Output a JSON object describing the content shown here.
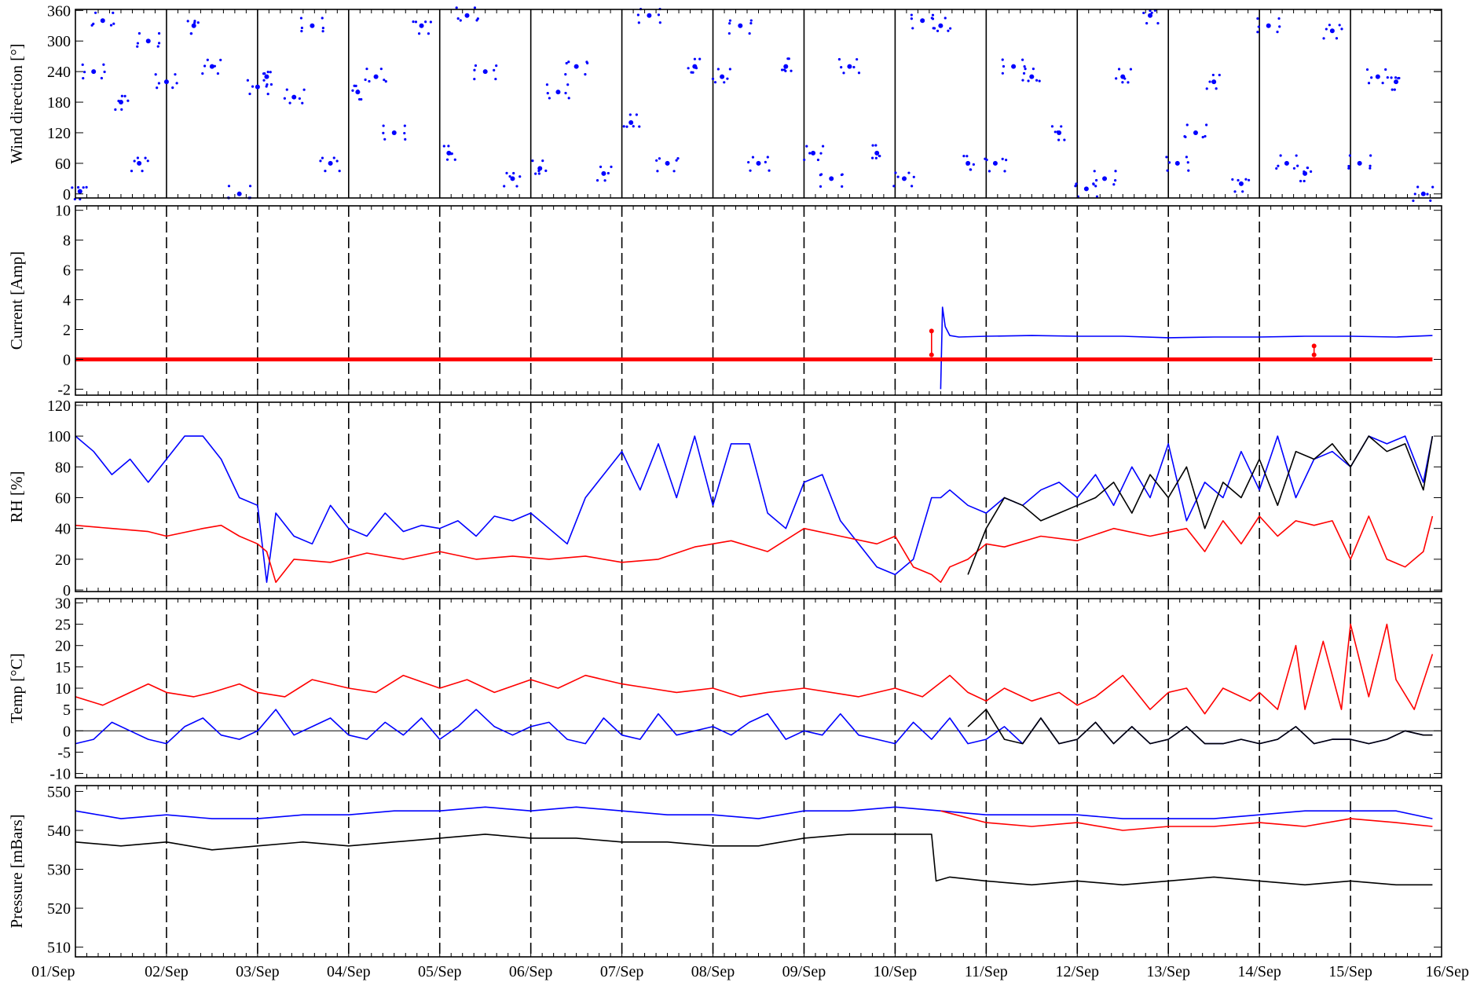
{
  "chart_data": [
    {
      "type": "scatter",
      "ylabel": "Wind direction [°]",
      "ylim": [
        -8,
        362
      ],
      "yticks": [
        0,
        60,
        120,
        180,
        240,
        300,
        360
      ],
      "day_lines": "solid",
      "series": [
        {
          "color": "#0000ff",
          "x": [
            0.05,
            0.2,
            0.3,
            0.5,
            0.7,
            0.8,
            1.0,
            1.3,
            1.5,
            1.8,
            2.0,
            2.1,
            2.4,
            2.6,
            2.8,
            3.1,
            3.3,
            3.5,
            3.8,
            4.1,
            4.3,
            4.5,
            4.8,
            5.1,
            5.3,
            5.5,
            5.8,
            6.1,
            6.3,
            6.5,
            6.8,
            7.1,
            7.3,
            7.5,
            7.8,
            8.1,
            8.3,
            8.5,
            8.8,
            9.1,
            9.3,
            9.5,
            9.8,
            10.1,
            10.3,
            10.5,
            10.8,
            11.1,
            11.3,
            11.5,
            11.8,
            12.1,
            12.3,
            12.5,
            12.8,
            13.1,
            13.3,
            13.5,
            13.8,
            14.1,
            14.3,
            14.5,
            14.8
          ],
          "y": [
            5,
            240,
            340,
            180,
            60,
            300,
            220,
            330,
            250,
            0,
            210,
            230,
            190,
            330,
            60,
            200,
            230,
            120,
            330,
            80,
            350,
            240,
            30,
            50,
            200,
            250,
            40,
            140,
            350,
            60,
            250,
            230,
            330,
            60,
            250,
            80,
            30,
            250,
            80,
            30,
            340,
            330,
            60,
            60,
            250,
            230,
            120,
            10,
            30,
            230,
            350,
            60,
            120,
            220,
            20,
            330,
            60,
            40,
            320,
            60,
            230,
            220,
            0
          ]
        }
      ]
    },
    {
      "type": "line",
      "ylabel": "Current [Amp]",
      "ylim": [
        -2.4,
        10.3
      ],
      "yticks": [
        -2,
        0,
        2,
        4,
        6,
        8,
        10
      ],
      "day_lines": "dashed",
      "series": [
        {
          "color": "#0000ff",
          "x": [
            9.5,
            9.52,
            9.55,
            9.6,
            9.7,
            10.0,
            10.5,
            11.0,
            11.5,
            12.0,
            12.5,
            13.0,
            13.5,
            14.0,
            14.5,
            14.9
          ],
          "y": [
            -2.0,
            3.5,
            2.2,
            1.6,
            1.5,
            1.55,
            1.6,
            1.55,
            1.55,
            1.45,
            1.5,
            1.5,
            1.55,
            1.55,
            1.5,
            1.6
          ]
        },
        {
          "color": "#ff0000",
          "x": [
            0,
            14.9
          ],
          "y": [
            0,
            0
          ]
        },
        {
          "color": "#ff0000",
          "x": [
            9.4,
            9.4
          ],
          "y": [
            0.3,
            1.9
          ]
        },
        {
          "color": "#ff0000",
          "x": [
            13.6,
            13.6
          ],
          "y": [
            0.3,
            0.9
          ]
        }
      ]
    },
    {
      "type": "line",
      "ylabel": "RH [%]",
      "ylim": [
        -1,
        122
      ],
      "yticks": [
        0,
        20,
        40,
        60,
        80,
        100,
        120
      ],
      "day_lines": "dashed",
      "series": [
        {
          "color": "#0000ff",
          "x": [
            0,
            0.2,
            0.4,
            0.6,
            0.8,
            1.0,
            1.2,
            1.4,
            1.6,
            1.8,
            2.0,
            2.1,
            2.2,
            2.4,
            2.6,
            2.8,
            3.0,
            3.2,
            3.4,
            3.6,
            3.8,
            4.0,
            4.2,
            4.4,
            4.6,
            4.8,
            5.0,
            5.2,
            5.4,
            5.6,
            5.8,
            6.0,
            6.2,
            6.4,
            6.6,
            6.8,
            7.0,
            7.2,
            7.4,
            7.6,
            7.8,
            8.0,
            8.2,
            8.4,
            8.6,
            8.8,
            9.0,
            9.2,
            9.4,
            9.5,
            9.6,
            9.8,
            10.0,
            10.2,
            10.4,
            10.6,
            10.8,
            11.0,
            11.2,
            11.4,
            11.6,
            11.8,
            12.0,
            12.2,
            12.4,
            12.6,
            12.8,
            13.0,
            13.2,
            13.4,
            13.6,
            13.8,
            14.0,
            14.2,
            14.4,
            14.6,
            14.8,
            14.9
          ],
          "y": [
            100,
            90,
            75,
            85,
            70,
            85,
            100,
            100,
            85,
            60,
            55,
            5,
            50,
            35,
            30,
            55,
            40,
            35,
            50,
            38,
            42,
            40,
            45,
            35,
            48,
            45,
            50,
            40,
            30,
            60,
            75,
            90,
            65,
            95,
            60,
            100,
            55,
            95,
            95,
            50,
            40,
            70,
            75,
            45,
            30,
            15,
            10,
            20,
            60,
            60,
            65,
            55,
            50,
            60,
            55,
            65,
            70,
            60,
            75,
            55,
            80,
            60,
            95,
            45,
            70,
            60,
            90,
            65,
            100,
            60,
            85,
            90,
            80,
            100,
            95,
            100,
            70,
            100
          ]
        },
        {
          "color": "#ff0000",
          "x": [
            0,
            0.4,
            0.8,
            1.0,
            1.4,
            1.6,
            1.8,
            2.0,
            2.1,
            2.2,
            2.4,
            2.8,
            3.2,
            3.6,
            4.0,
            4.4,
            4.8,
            5.2,
            5.6,
            6.0,
            6.4,
            6.8,
            7.2,
            7.6,
            8.0,
            8.4,
            8.8,
            9.0,
            9.2,
            9.4,
            9.5,
            9.6,
            9.8,
            10.0,
            10.2,
            10.6,
            11.0,
            11.4,
            11.8,
            12.2,
            12.4,
            12.6,
            12.8,
            13.0,
            13.2,
            13.4,
            13.6,
            13.8,
            14.0,
            14.2,
            14.4,
            14.6,
            14.8,
            14.9
          ],
          "y": [
            42,
            40,
            38,
            35,
            40,
            42,
            35,
            30,
            25,
            5,
            20,
            18,
            24,
            20,
            25,
            20,
            22,
            20,
            22,
            18,
            20,
            28,
            32,
            25,
            40,
            35,
            30,
            35,
            15,
            10,
            5,
            15,
            20,
            30,
            28,
            35,
            32,
            40,
            35,
            40,
            25,
            45,
            30,
            48,
            35,
            45,
            42,
            45,
            20,
            48,
            20,
            15,
            25,
            48
          ]
        },
        {
          "color": "#000000",
          "x": [
            9.8,
            10.0,
            10.2,
            10.4,
            10.6,
            10.8,
            11.0,
            11.2,
            11.4,
            11.6,
            11.8,
            12.0,
            12.2,
            12.4,
            12.6,
            12.8,
            13.0,
            13.2,
            13.4,
            13.6,
            13.8,
            14.0,
            14.2,
            14.4,
            14.6,
            14.8,
            14.9
          ],
          "y": [
            10,
            40,
            60,
            55,
            45,
            50,
            55,
            60,
            70,
            50,
            75,
            60,
            80,
            40,
            70,
            60,
            85,
            55,
            90,
            85,
            95,
            80,
            100,
            90,
            95,
            65,
            100
          ]
        }
      ]
    },
    {
      "type": "line",
      "ylabel": "Temp [°C]",
      "ylim": [
        -11,
        31
      ],
      "yticks": [
        -10,
        -5,
        0,
        5,
        10,
        15,
        20,
        25,
        30
      ],
      "day_lines": "dashed",
      "zero_line": true,
      "series": [
        {
          "color": "#ff0000",
          "x": [
            0,
            0.3,
            0.5,
            0.8,
            1.0,
            1.3,
            1.5,
            1.8,
            2.0,
            2.3,
            2.6,
            3.0,
            3.3,
            3.6,
            4.0,
            4.3,
            4.6,
            5.0,
            5.3,
            5.6,
            6.0,
            6.3,
            6.6,
            7.0,
            7.3,
            7.6,
            8.0,
            8.3,
            8.6,
            9.0,
            9.3,
            9.6,
            9.8,
            10.0,
            10.2,
            10.5,
            10.8,
            11.0,
            11.2,
            11.5,
            11.8,
            12.0,
            12.2,
            12.4,
            12.6,
            12.9,
            13.0,
            13.2,
            13.4,
            13.5,
            13.7,
            13.9,
            14.0,
            14.2,
            14.4,
            14.5,
            14.7,
            14.9
          ],
          "y": [
            8,
            6,
            8,
            11,
            9,
            8,
            9,
            11,
            9,
            8,
            12,
            10,
            9,
            13,
            10,
            12,
            9,
            12,
            10,
            13,
            11,
            10,
            9,
            10,
            8,
            9,
            10,
            9,
            8,
            10,
            8,
            13,
            9,
            7,
            10,
            7,
            9,
            6,
            8,
            13,
            5,
            9,
            10,
            4,
            10,
            7,
            9,
            5,
            20,
            5,
            21,
            5,
            25,
            8,
            25,
            12,
            5,
            18
          ]
        },
        {
          "color": "#0000ff",
          "x": [
            0,
            0.2,
            0.4,
            0.6,
            0.8,
            1.0,
            1.2,
            1.4,
            1.6,
            1.8,
            2.0,
            2.2,
            2.4,
            2.6,
            2.8,
            3.0,
            3.2,
            3.4,
            3.6,
            3.8,
            4.0,
            4.2,
            4.4,
            4.6,
            4.8,
            5.0,
            5.2,
            5.4,
            5.6,
            5.8,
            6.0,
            6.2,
            6.4,
            6.6,
            6.8,
            7.0,
            7.2,
            7.4,
            7.6,
            7.8,
            8.0,
            8.2,
            8.4,
            8.6,
            8.8,
            9.0,
            9.2,
            9.4,
            9.6,
            9.8,
            10.0,
            10.2,
            10.4,
            10.6,
            10.8,
            11.0,
            11.2,
            11.4,
            11.6,
            11.8,
            12.0,
            12.2,
            12.4,
            12.6,
            12.8,
            13.0,
            13.2,
            13.4,
            13.6,
            13.8,
            14.0,
            14.2,
            14.4,
            14.6,
            14.8,
            14.9
          ],
          "y": [
            -3,
            -2,
            2,
            0,
            -2,
            -3,
            1,
            3,
            -1,
            -2,
            0,
            5,
            -1,
            1,
            3,
            -1,
            -2,
            2,
            -1,
            3,
            -2,
            1,
            5,
            1,
            -1,
            1,
            2,
            -2,
            -3,
            3,
            -1,
            -2,
            4,
            -1,
            0,
            1,
            -1,
            2,
            4,
            -2,
            0,
            -1,
            4,
            -1,
            -2,
            -3,
            2,
            -2,
            3,
            -3,
            -2,
            1,
            -3,
            3,
            -3,
            -2,
            2,
            -3,
            1,
            -3,
            -2,
            1,
            -3,
            -3,
            -2,
            -3,
            -2,
            1,
            -3,
            -2,
            -2,
            -3,
            -2,
            0,
            -1,
            -1
          ]
        },
        {
          "color": "#000000",
          "x": [
            9.8,
            10.0,
            10.2,
            10.4,
            10.6,
            10.8,
            11.0,
            11.2,
            11.4,
            11.6,
            11.8,
            12.0,
            12.2,
            12.4,
            12.6,
            12.8,
            13.0,
            13.2,
            13.4,
            13.6,
            13.8,
            14.0,
            14.2,
            14.4,
            14.6,
            14.8,
            14.9
          ],
          "y": [
            1,
            5,
            -2,
            -3,
            3,
            -3,
            -2,
            2,
            -3,
            1,
            -3,
            -2,
            1,
            -3,
            -3,
            -2,
            -3,
            -2,
            1,
            -3,
            -2,
            -2,
            -3,
            -2,
            0,
            -1,
            -1
          ]
        }
      ]
    },
    {
      "type": "line",
      "ylabel": "Pressure [mBars]",
      "ylim": [
        507.5,
        551.5
      ],
      "yticks": [
        510,
        520,
        530,
        540,
        550
      ],
      "day_lines": "dashed",
      "series": [
        {
          "color": "#0000ff",
          "x": [
            0,
            0.5,
            1.0,
            1.5,
            2.0,
            2.5,
            3.0,
            3.5,
            4.0,
            4.5,
            5.0,
            5.5,
            6.0,
            6.5,
            7.0,
            7.5,
            8.0,
            8.5,
            9.0,
            9.5,
            10.0,
            10.5,
            11.0,
            11.5,
            12.0,
            12.5,
            13.0,
            13.5,
            14.0,
            14.5,
            14.9
          ],
          "y": [
            545,
            543,
            544,
            543,
            543,
            544,
            544,
            545,
            545,
            546,
            545,
            546,
            545,
            544,
            544,
            543,
            545,
            545,
            546,
            545,
            544,
            544,
            544,
            543,
            543,
            543,
            544,
            545,
            545,
            545,
            543
          ]
        },
        {
          "color": "#000000",
          "x": [
            0,
            0.5,
            1.0,
            1.5,
            2.0,
            2.5,
            3.0,
            3.5,
            4.0,
            4.5,
            5.0,
            5.5,
            6.0,
            6.5,
            7.0,
            7.5,
            8.0,
            8.5,
            9.0,
            9.4,
            9.45,
            9.6,
            10.0,
            10.5,
            11.0,
            11.5,
            12.0,
            12.5,
            13.0,
            13.5,
            14.0,
            14.5,
            14.9
          ],
          "y": [
            537,
            536,
            537,
            535,
            536,
            537,
            536,
            537,
            538,
            539,
            538,
            538,
            537,
            537,
            536,
            536,
            538,
            539,
            539,
            539,
            527,
            528,
            527,
            526,
            527,
            526,
            527,
            528,
            527,
            526,
            527,
            526,
            526
          ]
        },
        {
          "color": "#ff0000",
          "x": [
            9.5,
            10.0,
            10.5,
            11.0,
            11.5,
            12.0,
            12.5,
            13.0,
            13.5,
            14.0,
            14.5,
            14.9
          ],
          "y": [
            545,
            542,
            541,
            542,
            540,
            541,
            541,
            542,
            541,
            543,
            542,
            541
          ]
        }
      ]
    }
  ],
  "xaxis": {
    "tick_labels": [
      "01/Sep",
      "02/Sep",
      "03/Sep",
      "04/Sep",
      "05/Sep",
      "06/Sep",
      "07/Sep",
      "08/Sep",
      "09/Sep",
      "10/Sep",
      "11/Sep",
      "12/Sep",
      "13/Sep",
      "14/Sep",
      "15/Sep",
      "16/Sep"
    ],
    "xlim": [
      0,
      15
    ]
  }
}
